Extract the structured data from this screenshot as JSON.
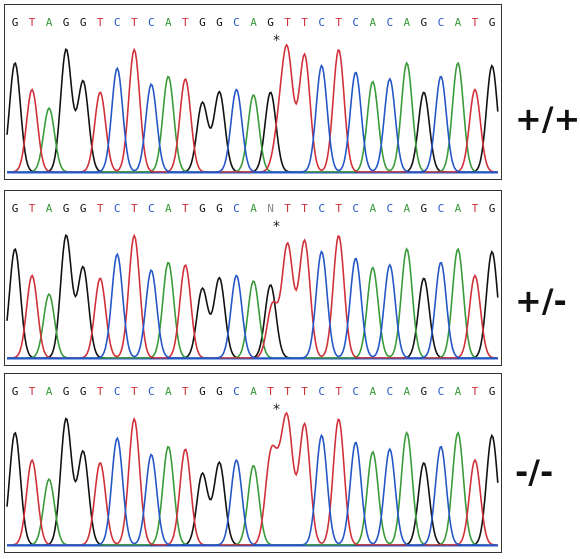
{
  "colors": {
    "G": "#111111",
    "A": "#3a9a3a",
    "T": "#d0303a",
    "C": "#2456c6",
    "N": "#8a8a8a"
  },
  "panels": [
    {
      "sequence": "GTAGGTCTCATGGCAGTTCTCACAGCATG",
      "marker": "*",
      "marker_base_index": 15,
      "genotype": "+/+"
    },
    {
      "sequence": "GTAGGTCTCATGGCANTTCTCACAGCATG",
      "marker": "*",
      "marker_base_index": 15,
      "genotype": "+/-"
    },
    {
      "sequence": "GTAGGTCTCATGGCATTTCTCACAGCATG",
      "marker": "*",
      "marker_base_index": 15,
      "genotype": "-/-"
    }
  ]
}
